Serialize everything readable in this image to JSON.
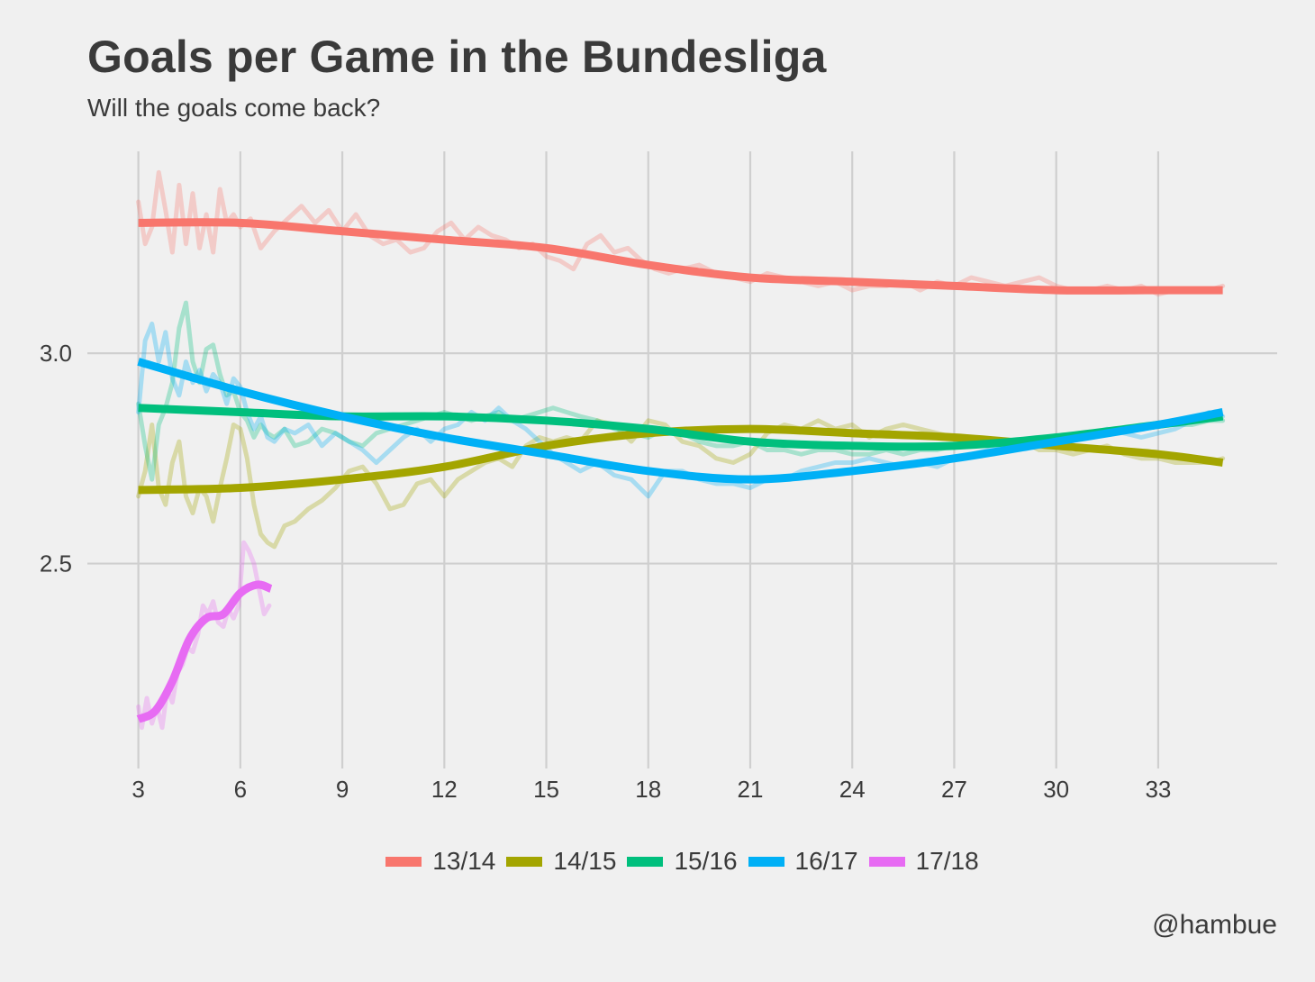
{
  "chart_data": {
    "type": "line",
    "title": "Goals per Game in the Bundesliga",
    "subtitle": "Will the goals come back?",
    "caption": "@hambue",
    "xlabel": "",
    "ylabel": "",
    "xlim": [
      1.5,
      36.5
    ],
    "ylim": [
      2.03,
      3.48
    ],
    "x_ticks": [
      3,
      6,
      9,
      12,
      15,
      18,
      21,
      24,
      27,
      30,
      33
    ],
    "y_ticks": [
      2.5,
      3.0
    ],
    "y_tick_labels": [
      "2.5",
      "3.0"
    ],
    "grid": true,
    "legend_position": "bottom",
    "series": [
      {
        "name": "13/14",
        "color": "#F8766D",
        "trend": {
          "x": [
            3,
            6,
            9,
            12,
            15,
            18,
            21,
            24,
            27,
            30,
            33,
            34.9
          ],
          "y": [
            3.31,
            3.31,
            3.29,
            3.27,
            3.25,
            3.21,
            3.18,
            3.17,
            3.16,
            3.15,
            3.15,
            3.15
          ]
        },
        "raw": {
          "x": [
            3,
            3.2,
            3.4,
            3.6,
            3.8,
            4.0,
            4.2,
            4.4,
            4.6,
            4.8,
            5.0,
            5.2,
            5.4,
            5.6,
            5.8,
            6.0,
            6.3,
            6.6,
            7.0,
            7.4,
            7.8,
            8.2,
            8.6,
            9.0,
            9.4,
            9.8,
            10.2,
            10.6,
            11.0,
            11.4,
            11.8,
            12.2,
            12.6,
            13.0,
            13.4,
            13.8,
            14.2,
            14.6,
            15.0,
            15.4,
            15.8,
            16.2,
            16.6,
            17.0,
            17.4,
            17.8,
            18.2,
            18.6,
            19.0,
            19.5,
            20.0,
            20.5,
            21.0,
            21.5,
            22.0,
            22.5,
            23.0,
            23.5,
            24.0,
            24.5,
            25.0,
            25.5,
            26.0,
            26.5,
            27.0,
            27.5,
            28.0,
            28.5,
            29.0,
            29.5,
            30.0,
            30.5,
            31.0,
            31.5,
            32.0,
            32.5,
            33.0,
            33.5,
            34.0,
            34.5,
            34.9
          ],
          "y": [
            3.36,
            3.26,
            3.3,
            3.43,
            3.34,
            3.24,
            3.4,
            3.26,
            3.38,
            3.25,
            3.33,
            3.24,
            3.39,
            3.31,
            3.33,
            3.3,
            3.32,
            3.25,
            3.29,
            3.32,
            3.35,
            3.31,
            3.34,
            3.29,
            3.33,
            3.28,
            3.26,
            3.27,
            3.24,
            3.25,
            3.29,
            3.31,
            3.27,
            3.3,
            3.28,
            3.27,
            3.25,
            3.26,
            3.23,
            3.22,
            3.2,
            3.26,
            3.28,
            3.24,
            3.25,
            3.22,
            3.2,
            3.19,
            3.2,
            3.21,
            3.19,
            3.18,
            3.17,
            3.19,
            3.18,
            3.17,
            3.16,
            3.17,
            3.15,
            3.16,
            3.16,
            3.17,
            3.15,
            3.17,
            3.16,
            3.18,
            3.17,
            3.16,
            3.17,
            3.18,
            3.16,
            3.15,
            3.15,
            3.16,
            3.15,
            3.16,
            3.14,
            3.15,
            3.15,
            3.15,
            3.16
          ]
        }
      },
      {
        "name": "14/15",
        "color": "#A3A500",
        "trend": {
          "x": [
            3,
            6,
            9,
            12,
            15,
            18,
            21,
            24,
            27,
            30,
            33,
            34.9
          ],
          "y": [
            2.675,
            2.68,
            2.7,
            2.73,
            2.78,
            2.81,
            2.82,
            2.81,
            2.8,
            2.78,
            2.76,
            2.74
          ]
        },
        "raw": {
          "x": [
            3,
            3.2,
            3.4,
            3.6,
            3.8,
            4.0,
            4.2,
            4.4,
            4.6,
            4.8,
            5.0,
            5.2,
            5.4,
            5.6,
            5.8,
            6.0,
            6.2,
            6.4,
            6.6,
            6.8,
            7.0,
            7.3,
            7.6,
            8.0,
            8.4,
            8.8,
            9.2,
            9.6,
            10.0,
            10.4,
            10.8,
            11.2,
            11.6,
            12.0,
            12.4,
            12.8,
            13.2,
            13.6,
            14.0,
            14.4,
            14.8,
            15.2,
            15.6,
            16.0,
            16.5,
            17.0,
            17.5,
            18.0,
            18.5,
            19.0,
            19.5,
            20.0,
            20.5,
            21.0,
            21.5,
            22.0,
            22.5,
            23.0,
            23.5,
            24.0,
            24.5,
            25.0,
            25.5,
            26.0,
            26.5,
            27.0,
            27.5,
            28.0,
            28.5,
            29.0,
            29.5,
            30.0,
            30.5,
            31.0,
            31.5,
            32.0,
            32.5,
            33.0,
            33.5,
            34.0,
            34.5,
            34.9
          ],
          "y": [
            2.66,
            2.72,
            2.83,
            2.68,
            2.64,
            2.74,
            2.79,
            2.66,
            2.62,
            2.68,
            2.66,
            2.6,
            2.68,
            2.75,
            2.83,
            2.82,
            2.75,
            2.64,
            2.57,
            2.55,
            2.54,
            2.59,
            2.6,
            2.63,
            2.65,
            2.68,
            2.72,
            2.73,
            2.69,
            2.63,
            2.64,
            2.69,
            2.7,
            2.66,
            2.7,
            2.72,
            2.74,
            2.75,
            2.73,
            2.78,
            2.8,
            2.79,
            2.8,
            2.79,
            2.84,
            2.83,
            2.79,
            2.84,
            2.83,
            2.79,
            2.78,
            2.75,
            2.74,
            2.76,
            2.81,
            2.83,
            2.82,
            2.84,
            2.82,
            2.83,
            2.8,
            2.82,
            2.83,
            2.82,
            2.81,
            2.8,
            2.79,
            2.79,
            2.78,
            2.79,
            2.77,
            2.77,
            2.76,
            2.77,
            2.78,
            2.76,
            2.75,
            2.75,
            2.74,
            2.74,
            2.74,
            2.75
          ]
        }
      },
      {
        "name": "15/16",
        "color": "#00BF7D",
        "trend": {
          "x": [
            3,
            6,
            9,
            12,
            15,
            18,
            21,
            24,
            27,
            30,
            33,
            34.9
          ],
          "y": [
            2.87,
            2.86,
            2.85,
            2.85,
            2.84,
            2.82,
            2.79,
            2.78,
            2.78,
            2.8,
            2.83,
            2.85
          ]
        },
        "raw": {
          "x": [
            3,
            3.2,
            3.4,
            3.6,
            3.8,
            4.0,
            4.2,
            4.4,
            4.6,
            4.8,
            5.0,
            5.2,
            5.4,
            5.6,
            5.8,
            6.0,
            6.2,
            6.4,
            6.6,
            6.8,
            7.0,
            7.3,
            7.6,
            8.0,
            8.4,
            8.8,
            9.2,
            9.6,
            10.0,
            10.4,
            10.8,
            11.2,
            11.6,
            12.0,
            12.4,
            12.8,
            13.2,
            13.6,
            14.0,
            14.4,
            14.8,
            15.2,
            15.6,
            16.0,
            16.5,
            17.0,
            17.5,
            18.0,
            18.5,
            19.0,
            19.5,
            20.0,
            20.5,
            21.0,
            21.5,
            22.0,
            22.5,
            23.0,
            23.5,
            24.0,
            24.5,
            25.0,
            25.5,
            26.0,
            26.5,
            27.0,
            27.5,
            28.0,
            28.5,
            29.0,
            29.5,
            30.0,
            30.5,
            31.0,
            31.5,
            32.0,
            32.5,
            33.0,
            33.5,
            34.0,
            34.5,
            34.9
          ],
          "y": [
            2.88,
            2.78,
            2.7,
            2.83,
            2.87,
            2.93,
            3.06,
            3.12,
            2.98,
            2.93,
            3.01,
            3.02,
            2.95,
            2.9,
            2.91,
            2.86,
            2.84,
            2.8,
            2.83,
            2.81,
            2.8,
            2.82,
            2.78,
            2.79,
            2.82,
            2.81,
            2.79,
            2.78,
            2.81,
            2.82,
            2.83,
            2.84,
            2.85,
            2.86,
            2.85,
            2.84,
            2.85,
            2.86,
            2.84,
            2.85,
            2.86,
            2.87,
            2.86,
            2.85,
            2.84,
            2.82,
            2.81,
            2.8,
            2.82,
            2.81,
            2.79,
            2.78,
            2.78,
            2.79,
            2.77,
            2.77,
            2.76,
            2.77,
            2.77,
            2.76,
            2.76,
            2.77,
            2.76,
            2.77,
            2.77,
            2.78,
            2.78,
            2.78,
            2.79,
            2.79,
            2.79,
            2.8,
            2.8,
            2.81,
            2.81,
            2.82,
            2.82,
            2.83,
            2.83,
            2.83,
            2.84,
            2.84
          ]
        }
      },
      {
        "name": "16/17",
        "color": "#00B0F6",
        "trend": {
          "x": [
            3,
            6,
            9,
            12,
            15,
            18,
            21,
            24,
            27,
            30,
            33,
            34.9
          ],
          "y": [
            2.98,
            2.91,
            2.85,
            2.8,
            2.76,
            2.72,
            2.7,
            2.72,
            2.75,
            2.79,
            2.83,
            2.86
          ]
        },
        "raw": {
          "x": [
            3,
            3.2,
            3.4,
            3.6,
            3.8,
            4.0,
            4.2,
            4.4,
            4.6,
            4.8,
            5.0,
            5.2,
            5.4,
            5.6,
            5.8,
            6.0,
            6.2,
            6.4,
            6.6,
            6.8,
            7.0,
            7.3,
            7.6,
            8.0,
            8.4,
            8.8,
            9.2,
            9.6,
            10.0,
            10.4,
            10.8,
            11.2,
            11.6,
            12.0,
            12.4,
            12.8,
            13.2,
            13.6,
            14.0,
            14.4,
            14.8,
            15.2,
            15.6,
            16.0,
            16.5,
            17.0,
            17.5,
            18.0,
            18.5,
            19.0,
            19.5,
            20.0,
            20.5,
            21.0,
            21.5,
            22.0,
            22.5,
            23.0,
            23.5,
            24.0,
            24.5,
            25.0,
            25.5,
            26.0,
            26.5,
            27.0,
            27.5,
            28.0,
            28.5,
            29.0,
            29.5,
            30.0,
            30.5,
            31.0,
            31.5,
            32.0,
            32.5,
            33.0,
            33.5,
            34.0,
            34.5,
            34.9
          ],
          "y": [
            2.86,
            3.03,
            3.07,
            2.98,
            3.05,
            2.94,
            2.9,
            2.98,
            2.93,
            2.96,
            2.91,
            2.95,
            2.93,
            2.88,
            2.94,
            2.92,
            2.86,
            2.82,
            2.85,
            2.8,
            2.79,
            2.82,
            2.81,
            2.83,
            2.78,
            2.81,
            2.79,
            2.77,
            2.74,
            2.77,
            2.8,
            2.82,
            2.79,
            2.82,
            2.83,
            2.86,
            2.84,
            2.87,
            2.84,
            2.82,
            2.79,
            2.76,
            2.74,
            2.72,
            2.74,
            2.71,
            2.7,
            2.66,
            2.72,
            2.72,
            2.7,
            2.69,
            2.69,
            2.68,
            2.7,
            2.7,
            2.72,
            2.73,
            2.74,
            2.74,
            2.75,
            2.74,
            2.73,
            2.74,
            2.73,
            2.75,
            2.76,
            2.77,
            2.78,
            2.78,
            2.79,
            2.79,
            2.8,
            2.81,
            2.82,
            2.81,
            2.8,
            2.81,
            2.82,
            2.84,
            2.86,
            2.85
          ]
        }
      },
      {
        "name": "17/18",
        "color": "#E76BF3",
        "trend": {
          "x": [
            3,
            3.5,
            4,
            4.5,
            5,
            5.5,
            6,
            6.5,
            6.9
          ],
          "y": [
            2.13,
            2.15,
            2.22,
            2.32,
            2.37,
            2.38,
            2.43,
            2.45,
            2.44
          ]
        },
        "raw": {
          "x": [
            3,
            3.1,
            3.25,
            3.4,
            3.55,
            3.7,
            3.85,
            4.0,
            4.15,
            4.3,
            4.45,
            4.6,
            4.75,
            4.9,
            5.05,
            5.2,
            5.35,
            5.5,
            5.65,
            5.8,
            5.95,
            6.1,
            6.25,
            6.4,
            6.55,
            6.7,
            6.85
          ],
          "y": [
            2.16,
            2.11,
            2.18,
            2.12,
            2.16,
            2.11,
            2.2,
            2.17,
            2.24,
            2.26,
            2.3,
            2.29,
            2.33,
            2.4,
            2.38,
            2.41,
            2.36,
            2.35,
            2.39,
            2.37,
            2.4,
            2.55,
            2.53,
            2.5,
            2.44,
            2.38,
            2.4
          ]
        }
      }
    ]
  }
}
